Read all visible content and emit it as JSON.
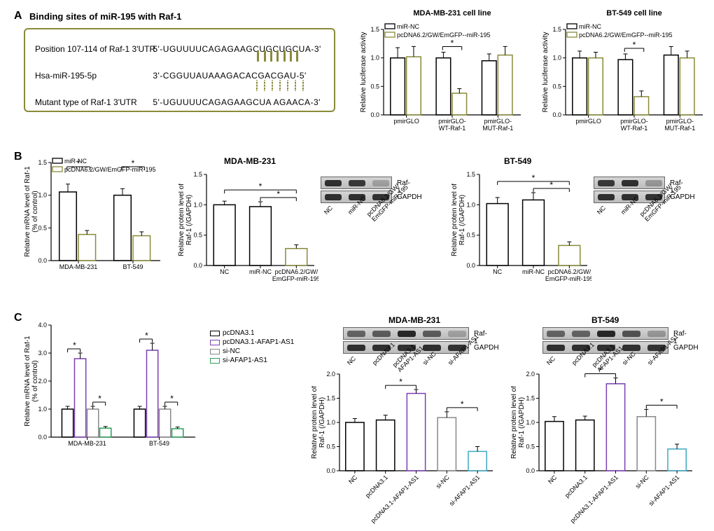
{
  "colors": {
    "olive": "#8a8a3a",
    "black": "#000000",
    "white": "#ffffff",
    "purple": "#7b3fb3",
    "gray": "#888888",
    "green": "#2e9e5b",
    "teal": "#3fa9c0",
    "border": "#8a8a3a"
  },
  "panelA": {
    "label": "A",
    "title": "Binding sites of miR-195 with Raf-1",
    "rows": [
      {
        "label": "Position 107-114 of Raf-1 3'UTR",
        "seq": "5'-UGUUUUCAGAGAAGCUGCUGCUA-3'"
      },
      {
        "label": "Hsa-miR-195-5p",
        "seq": "3'-CGGUUAUAAAGACACGACGAU-5'"
      },
      {
        "label": "Mutant type of Raf-1 3'UTR",
        "seq": "5'-UGUUUUCAGAGAAGCUA AGAACA-3'"
      }
    ],
    "charts": [
      {
        "title": "MDA-MB-231 cell line",
        "ylabel": "Relative luciferase activity",
        "ylim": [
          0,
          1.5
        ],
        "ytick_step": 0.5,
        "legend": [
          "miR-NC",
          "pcDNA6.2/GW/EmGFP--miR-195"
        ],
        "categories": [
          "pmirGLO",
          "pmirGLO-WT-Raf-1",
          "pmirGLO-MUT-Raf-1"
        ],
        "series": [
          {
            "color": "#000000",
            "values": [
              1.0,
              1.0,
              0.95
            ],
            "err": [
              0.18,
              0.1,
              0.12
            ]
          },
          {
            "color": "#8a8a3a",
            "values": [
              1.02,
              0.38,
              1.05
            ],
            "err": [
              0.18,
              0.08,
              0.15
            ]
          }
        ],
        "sig": {
          "group": 1,
          "text": "*"
        }
      },
      {
        "title": "BT-549 cell line",
        "ylabel": "Relative luciferase activity",
        "ylim": [
          0,
          1.5
        ],
        "ytick_step": 0.5,
        "legend": [
          "miR-NC",
          "pcDNA6.2/GW/EmGFP--miR-195"
        ],
        "categories": [
          "pmirGLO",
          "pmirGLO-WT-Raf-1",
          "pmirGLO-MUT-Raf-1"
        ],
        "series": [
          {
            "color": "#000000",
            "values": [
              1.0,
              0.97,
              1.05
            ],
            "err": [
              0.12,
              0.1,
              0.15
            ]
          },
          {
            "color": "#8a8a3a",
            "values": [
              1.0,
              0.32,
              1.0
            ],
            "err": [
              0.1,
              0.1,
              0.12
            ]
          }
        ],
        "sig": {
          "group": 1,
          "text": "*"
        }
      }
    ]
  },
  "panelB": {
    "label": "B",
    "chart1": {
      "ylabel": "Relative mRNA level of Raf-1 (% of control)",
      "ylim": [
        0,
        1.5
      ],
      "ytick_step": 0.5,
      "legend": [
        "miR-NC",
        "pcDNA6.2/GW/EmGFP-miR-195"
      ],
      "categories": [
        "MDA-MB-231",
        "BT-549"
      ],
      "series": [
        {
          "color": "#000000",
          "values": [
            1.05,
            1.0
          ],
          "err": [
            0.12,
            0.1
          ]
        },
        {
          "color": "#8a8a3a",
          "values": [
            0.4,
            0.38
          ],
          "err": [
            0.06,
            0.06
          ]
        }
      ]
    },
    "protein_charts": [
      {
        "title": "MDA-MB-231",
        "ylabel": "Relative protein level of Raf-1 (/GAPDH)",
        "ylim": [
          0,
          1.5
        ],
        "ytick_step": 0.5,
        "categories": [
          "NC",
          "miR-NC",
          "pcDNA6.2/GW/EmGFP-miR-195"
        ],
        "colors": [
          "#000000",
          "#000000",
          "#8a8a3a"
        ],
        "values": [
          1.0,
          0.97,
          0.28
        ],
        "err": [
          0.06,
          0.08,
          0.06
        ],
        "blot": {
          "proteins": [
            "Raf-1",
            "GAPDH"
          ],
          "lanes": [
            "NC",
            "miR-NC",
            "pcDNA6.2/GW/\nEmGFP-miR-195"
          ],
          "intensities": [
            [
              0.9,
              0.85,
              0.25
            ],
            [
              0.9,
              0.9,
              0.88
            ]
          ]
        }
      },
      {
        "title": "BT-549",
        "ylabel": "Relative protein level of Raf-1 (/GAPDH)",
        "ylim": [
          0,
          1.5
        ],
        "ytick_step": 0.5,
        "categories": [
          "NC",
          "miR-NC",
          "pcDNA6.2/GW/EmGFP-miR-195"
        ],
        "colors": [
          "#000000",
          "#000000",
          "#8a8a3a"
        ],
        "values": [
          1.02,
          1.08,
          0.33
        ],
        "err": [
          0.1,
          0.12,
          0.06
        ],
        "blot": {
          "proteins": [
            "Raf-1",
            "GAPDH"
          ],
          "lanes": [
            "NC",
            "miR-NC",
            "pcDNA6.2/GW/\nEmGFP-miR-195"
          ],
          "intensities": [
            [
              0.85,
              0.9,
              0.3
            ],
            [
              0.9,
              0.9,
              0.88
            ]
          ]
        }
      }
    ]
  },
  "panelC": {
    "label": "C",
    "chart1": {
      "ylabel": "Relative mRNA level of Raf-1 (% of control)",
      "ylim": [
        0,
        4
      ],
      "ytick_step": 1,
      "legend": [
        "pcDNA3.1",
        "pcDNA3.1-AFAP1-AS1",
        "si-NC",
        "si-AFAP1-AS1"
      ],
      "legend_colors": [
        "#000000",
        "#7b3fb3",
        "#888888",
        "#2e9e5b"
      ],
      "categories": [
        "MDA-MB-231",
        "BT-549"
      ],
      "values": [
        [
          1.0,
          2.8,
          1.0,
          0.32
        ],
        [
          1.0,
          3.1,
          1.0,
          0.3
        ]
      ],
      "err": [
        [
          0.1,
          0.2,
          0.1,
          0.06
        ],
        [
          0.1,
          0.25,
          0.1,
          0.06
        ]
      ]
    },
    "protein_charts": [
      {
        "title": "MDA-MB-231",
        "ylabel": "Relative protein level of Raf-1 (/GAPDH)",
        "ylim": [
          0,
          2.0
        ],
        "ytick_step": 0.5,
        "categories": [
          "NC",
          "pcDNA3.1",
          "pcDNA3.1-AFAP1-AS1",
          "si-NC",
          "si-AFAP1-AS1"
        ],
        "colors": [
          "#000000",
          "#000000",
          "#7b3fb3",
          "#888888",
          "#3fa9c0"
        ],
        "values": [
          1.0,
          1.05,
          1.6,
          1.1,
          0.4
        ],
        "err": [
          0.08,
          0.1,
          0.08,
          0.12,
          0.1
        ],
        "blot": {
          "proteins": [
            "Raf-1",
            "GAPDH"
          ],
          "lanes": [
            "NC",
            "pcDNA3.1",
            "pcDNA3.1-\nAFAP1-AS1",
            "si-NC",
            "si-AFAP1-AS1"
          ],
          "intensities": [
            [
              0.6,
              0.65,
              0.95,
              0.65,
              0.25
            ],
            [
              0.9,
              0.9,
              0.9,
              0.9,
              0.88
            ]
          ]
        }
      },
      {
        "title": "BT-549",
        "ylabel": "Relative protein level of Raf-1 (/GAPDH)",
        "ylim": [
          0,
          2.0
        ],
        "ytick_step": 0.5,
        "categories": [
          "NC",
          "pcDNA3.1",
          "pcDNA3.1-AFAP1-AS1",
          "si-NC",
          "si-AFAP1-AS1"
        ],
        "colors": [
          "#000000",
          "#000000",
          "#7b3fb3",
          "#888888",
          "#3fa9c0"
        ],
        "values": [
          1.02,
          1.05,
          1.8,
          1.12,
          0.45
        ],
        "err": [
          0.1,
          0.08,
          0.12,
          0.15,
          0.1
        ],
        "blot": {
          "proteins": [
            "Raf-1",
            "GAPDH"
          ],
          "lanes": [
            "NC",
            "pcDNA3.1",
            "pcDNA3.1-\nAFAP1-AS1",
            "si-NC",
            "si-AFAP1-AS1"
          ],
          "intensities": [
            [
              0.6,
              0.6,
              0.95,
              0.7,
              0.3
            ],
            [
              0.9,
              0.9,
              0.9,
              0.9,
              0.88
            ]
          ]
        }
      }
    ]
  }
}
